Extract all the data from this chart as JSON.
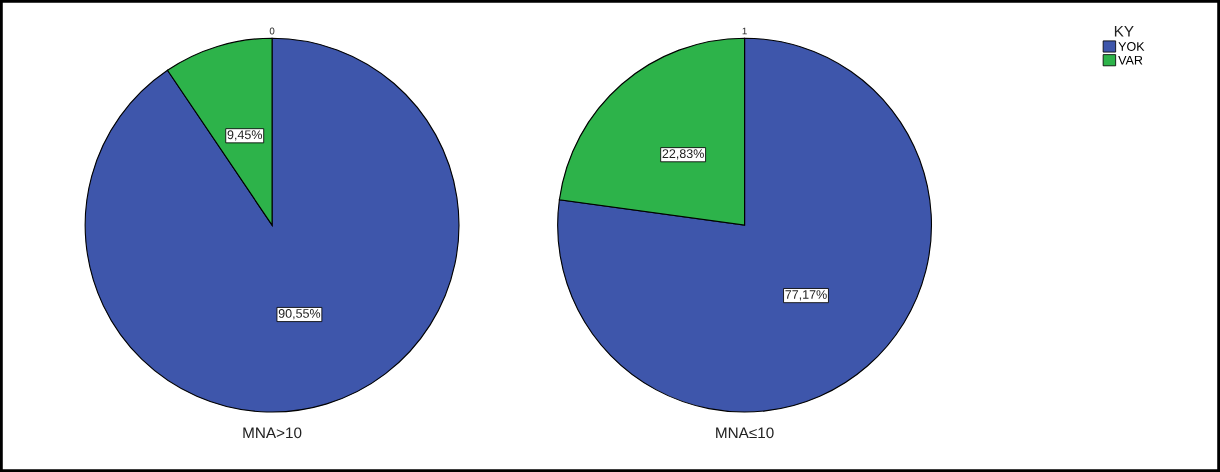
{
  "chart_data": [
    {
      "type": "pie",
      "title": "0",
      "xlabel": "MNA>10",
      "categories": [
        "YOK",
        "VAR"
      ],
      "values": [
        90.55,
        9.45
      ],
      "colors": [
        "#3e56ab",
        "#2db34a"
      ],
      "value_labels": [
        "90,55%",
        "9,45%"
      ],
      "legend": "right",
      "legend_title": "KY"
    },
    {
      "type": "pie",
      "title": "1",
      "xlabel": "MNA≤10",
      "categories": [
        null,
        null
      ],
      "values": [
        77.17,
        22.83
      ],
      "colors": [
        "#3e56ab",
        "#2db34a"
      ],
      "value_labels": [
        "77,17%",
        "22,83%"
      ],
      "legend": false
    }
  ]
}
